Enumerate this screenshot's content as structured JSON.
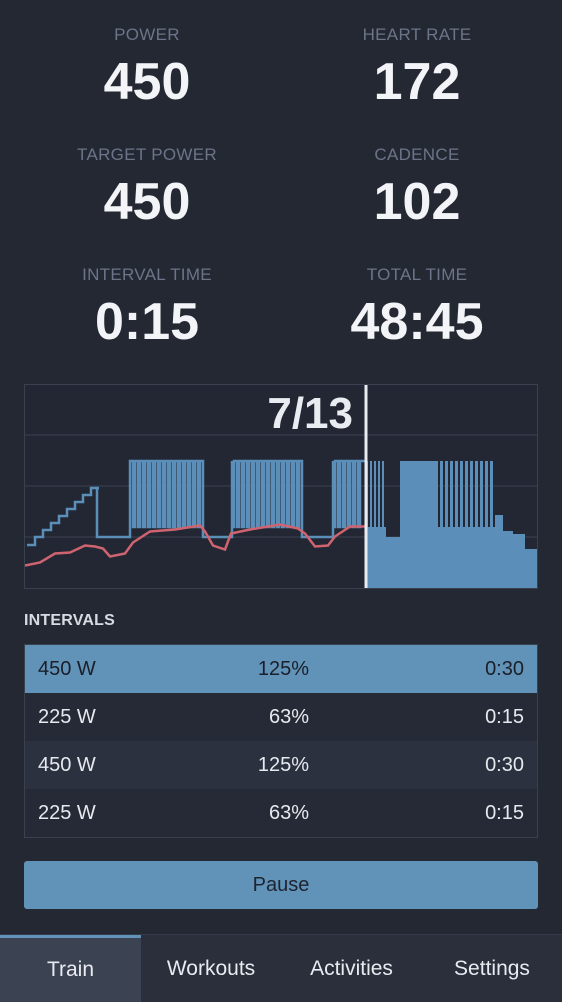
{
  "metrics": {
    "power": {
      "label": "POWER",
      "value": "450"
    },
    "heart_rate": {
      "label": "HEART RATE",
      "value": "172"
    },
    "target_power": {
      "label": "TARGET POWER",
      "value": "450"
    },
    "cadence": {
      "label": "CADENCE",
      "value": "102"
    },
    "interval_time": {
      "label": "INTERVAL TIME",
      "value": "0:15"
    },
    "total_time": {
      "label": "TOTAL TIME",
      "value": "48:45"
    }
  },
  "chart": {
    "progress_label": "7/13",
    "progress_fraction": 0.667,
    "colors": {
      "power": "#5b8fba",
      "heart_rate": "#cf6470",
      "target_fill": "#5b8fba",
      "grid": "#3b4150",
      "cursor": "#e8ebf0"
    }
  },
  "intervals": {
    "title": "INTERVALS",
    "rows": [
      {
        "watts": "450 W",
        "percent": "125%",
        "duration": "0:30",
        "active": true
      },
      {
        "watts": "225 W",
        "percent": "63%",
        "duration": "0:15",
        "active": false
      },
      {
        "watts": "450 W",
        "percent": "125%",
        "duration": "0:30",
        "active": false
      },
      {
        "watts": "225 W",
        "percent": "63%",
        "duration": "0:15",
        "active": false
      }
    ]
  },
  "pause_button": {
    "label": "Pause"
  },
  "tabs": [
    {
      "label": "Train",
      "active": true
    },
    {
      "label": "Workouts",
      "active": false
    },
    {
      "label": "Activities",
      "active": false
    },
    {
      "label": "Settings",
      "active": false
    }
  ],
  "accent_color": "#6192b8"
}
